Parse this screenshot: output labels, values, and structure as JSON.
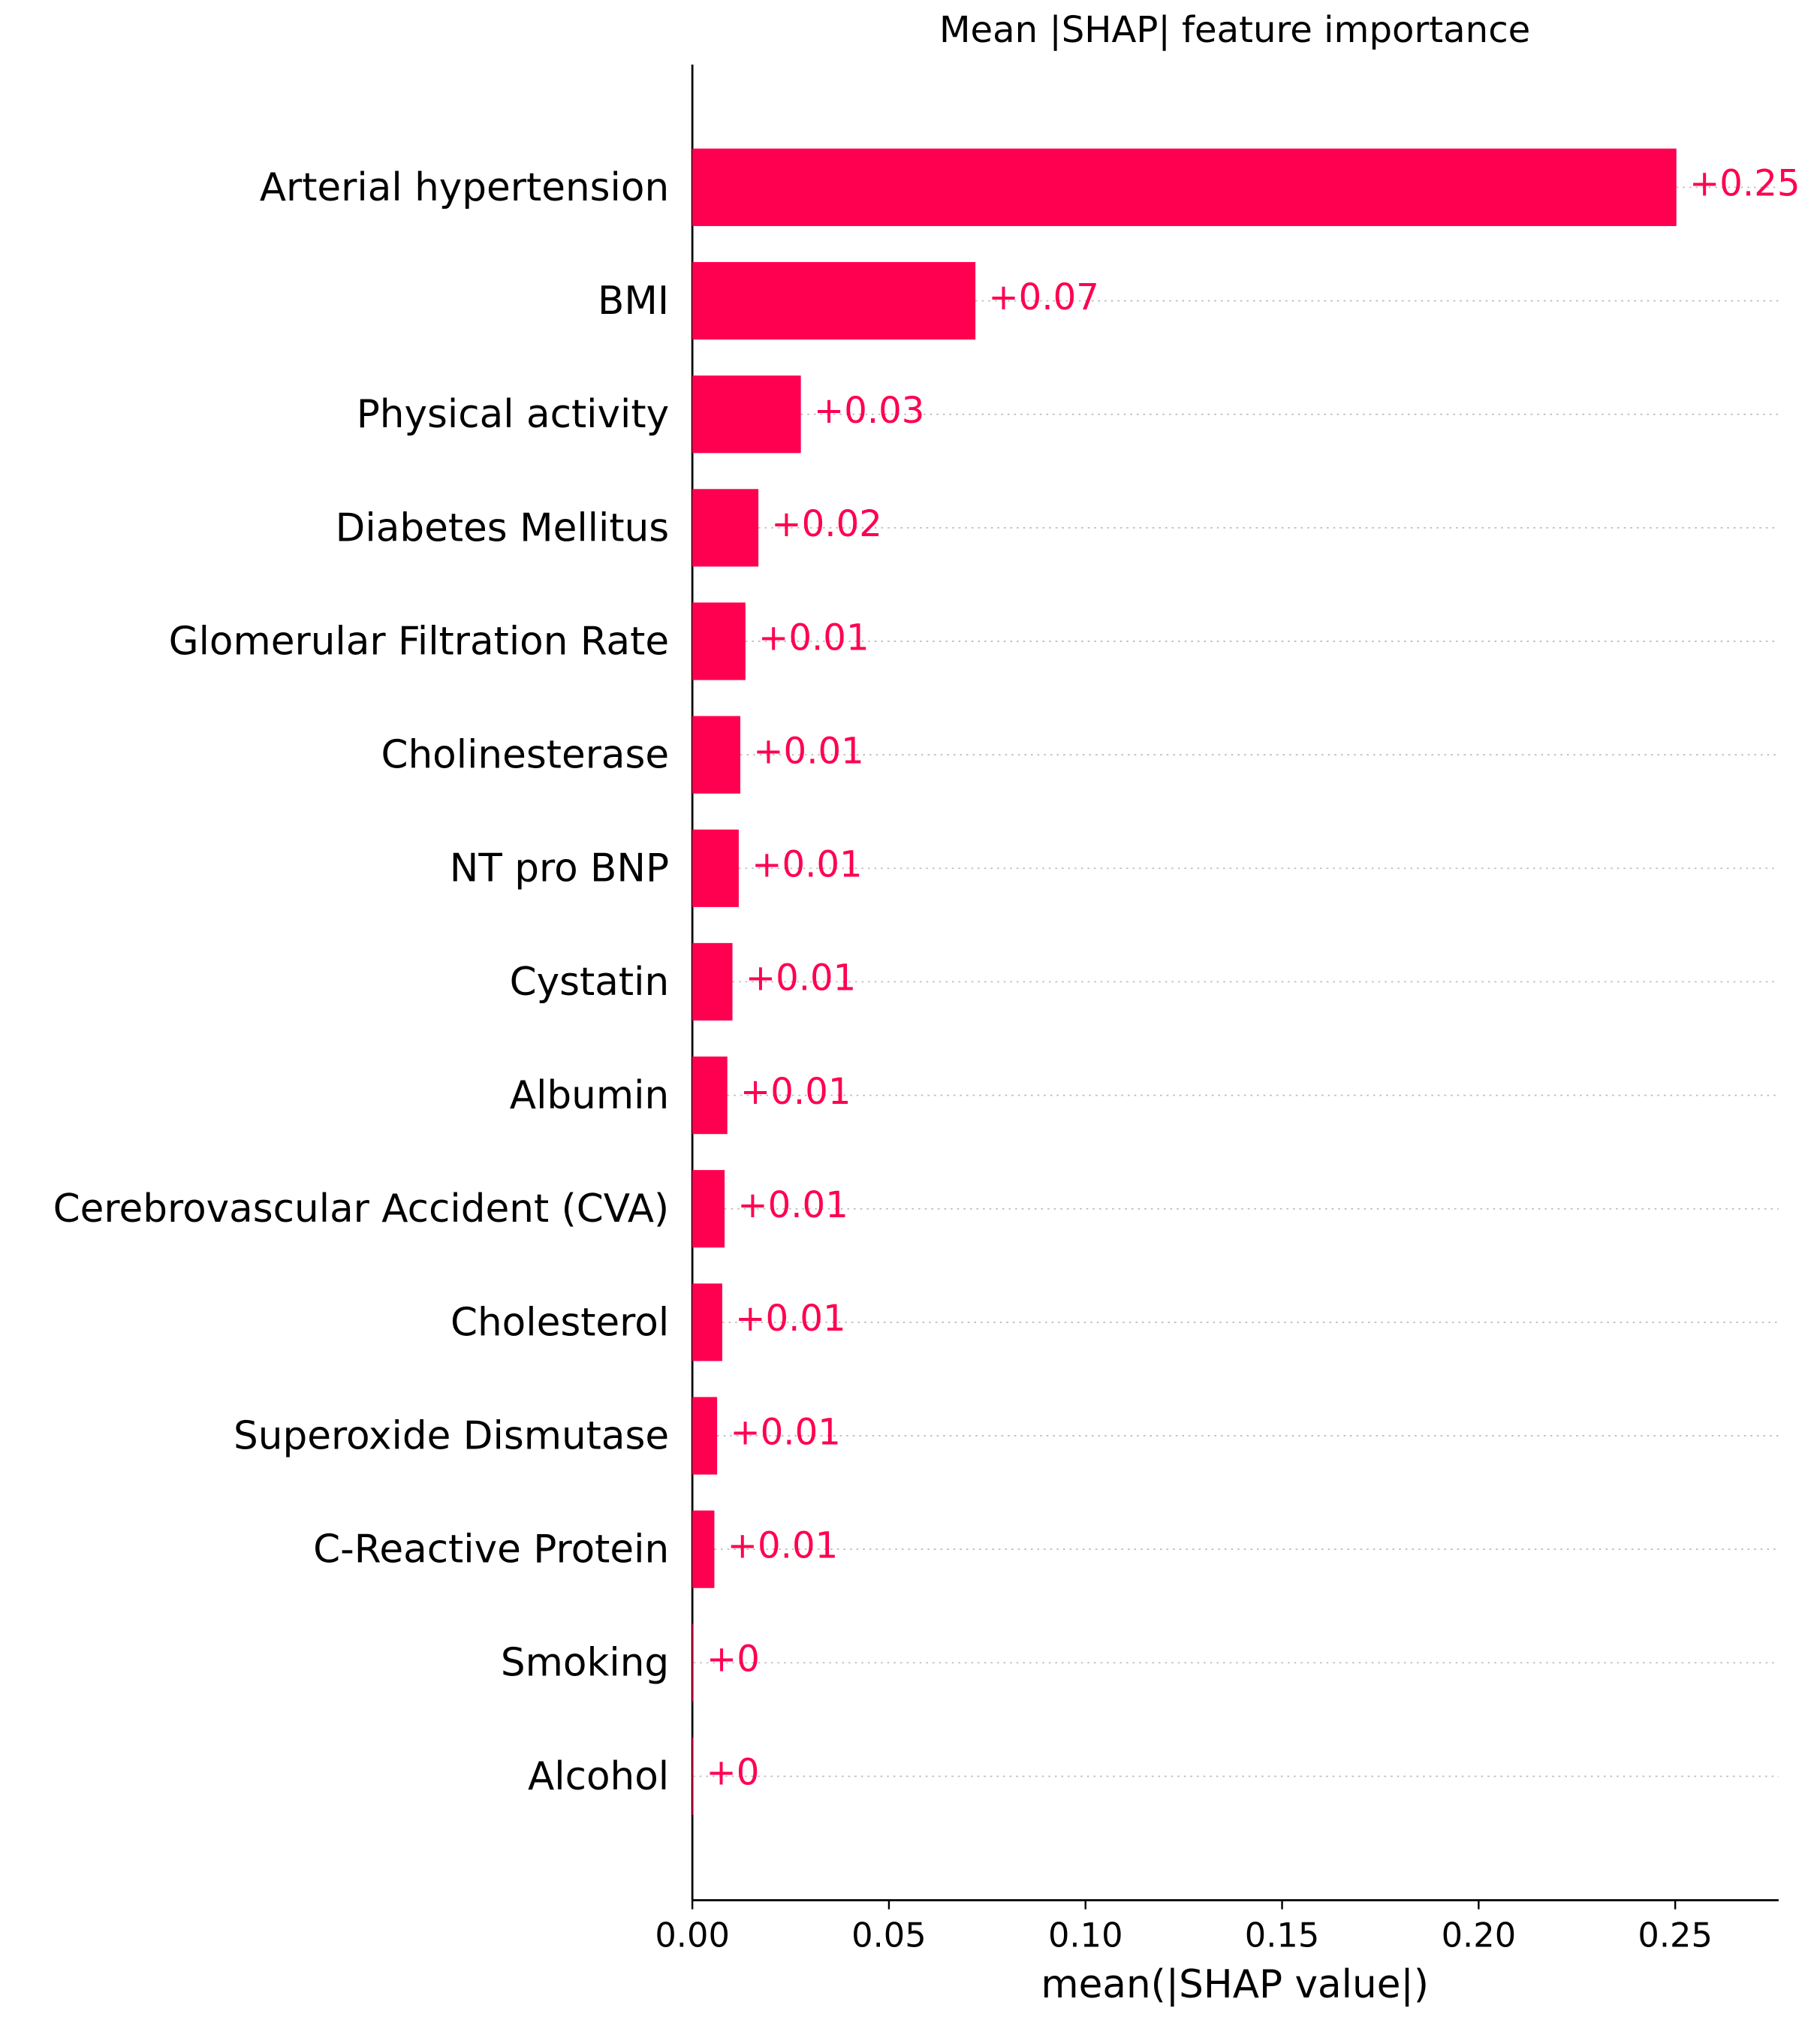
{
  "chart_data": {
    "type": "barh",
    "title": "Mean |SHAP| feature importance",
    "x_label": "mean(|SHAP value|)",
    "color": "#ff0051",
    "categories": [
      "Arterial hypertension",
      "BMI",
      "Physical activity",
      "Diabetes Mellitus",
      "Glomerular Filtration Rate",
      "Cholinesterase",
      "NT pro BNP",
      "Cystatin",
      "Albumin",
      "Cerebrovascular Accident (CVA)",
      "Cholesterol",
      "Superoxide Dismutase",
      "C-Reactive Protein",
      "Smoking",
      "Alcohol"
    ],
    "values": [
      0.2503,
      0.072,
      0.0276,
      0.0168,
      0.0135,
      0.0122,
      0.0118,
      0.0102,
      0.0089,
      0.0082,
      0.0076,
      0.0063,
      0.0056,
      0.0003,
      0.0002
    ],
    "value_labels": [
      "+0.25",
      "+0.07",
      "+0.03",
      "+0.02",
      "+0.01",
      "+0.01",
      "+0.01",
      "+0.01",
      "+0.01",
      "+0.01",
      "+0.01",
      "+0.01",
      "+0.01",
      "+0",
      "+0"
    ],
    "xlim": [
      0,
      0.2763
    ],
    "xticks": [
      {
        "value": 0,
        "label": "0.00"
      },
      0.05,
      {
        "value": 0.1,
        "label": "0.10"
      },
      0.15,
      {
        "value": 0.2,
        "label": "0.20"
      },
      0.25
    ]
  }
}
